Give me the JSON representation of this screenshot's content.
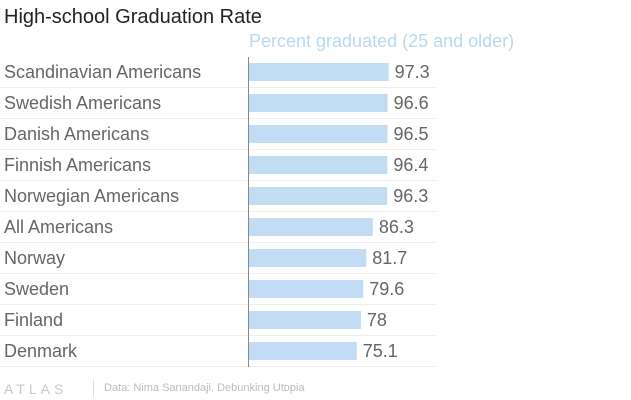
{
  "chart_data": {
    "type": "bar",
    "orientation": "horizontal",
    "title": "High-school Graduation Rate",
    "subtitle": "Percent graduated (25 and older)",
    "categories": [
      "Scandinavian Americans",
      "Swedish Americans",
      "Danish Americans",
      "Finnish Americans",
      "Norwegian Americans",
      "All Americans",
      "Norway",
      "Sweden",
      "Finland",
      "Denmark"
    ],
    "values": [
      97.3,
      96.6,
      96.5,
      96.4,
      96.3,
      86.3,
      81.7,
      79.6,
      78,
      75.1
    ],
    "value_labels": [
      "97.3",
      "96.6",
      "96.5",
      "96.4",
      "96.3",
      "86.3",
      "81.7",
      "79.6",
      "78",
      "75.1"
    ],
    "xlim": [
      0,
      100
    ],
    "grid": true,
    "legend": "none"
  },
  "colors": {
    "bar": "#c2ddf3",
    "subtitle": "#b8d8f2",
    "axis": "#888888",
    "grid": "#eeeeee"
  },
  "footer": {
    "logo": "ATLAS",
    "source": "Data: Nima Sanandaji, Debunking Utopia"
  }
}
